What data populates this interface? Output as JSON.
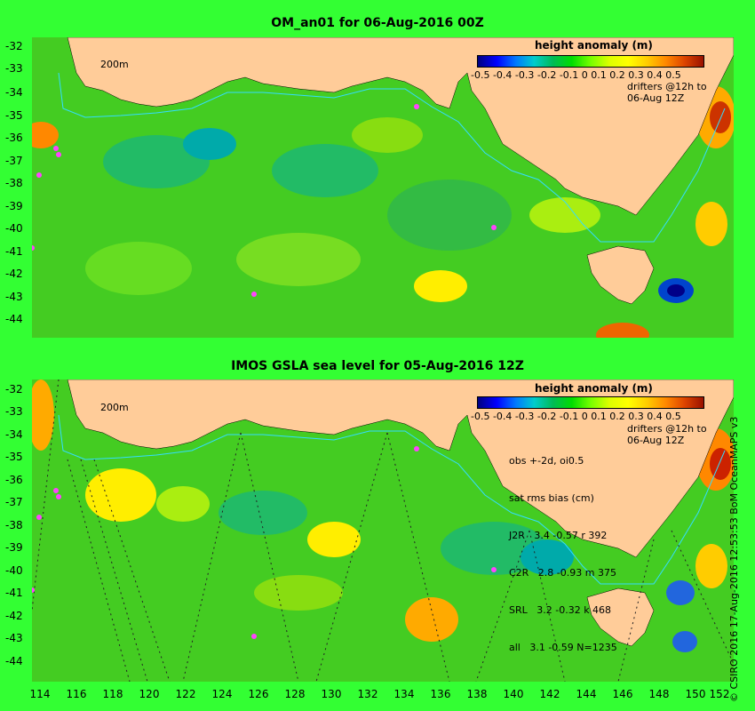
{
  "top_map": {
    "title": "OM_an01 for 06-Aug-2016 00Z",
    "legend_title": "height anomaly (m)",
    "colorbar_ticks": "-0.5 -0.4 -0.3 -0.2 -0.1   0   0.1  0.2  0.3  0.4  0.5",
    "drifters_label": "drifters @12h to",
    "drifters_time": "06-Aug 12Z",
    "contour_label": "200m"
  },
  "bottom_map": {
    "title": "IMOS GSLA sea level  for 05-Aug-2016 12Z",
    "legend_title": "height anomaly (m)",
    "colorbar_ticks": "-0.5 -0.4 -0.3 -0.2 -0.1   0   0.1  0.2  0.3  0.4  0.5",
    "drifters_label": "drifters @12h to",
    "drifters_time": "06-Aug 12Z",
    "contour_label": "200m",
    "stats": {
      "line1": "obs +-2d, oi0.5",
      "line2": "sat rms bias (cm)",
      "line3": "J2R   3.4 -0.57 r 392",
      "line4": "C2R   2.8 -0.93 m 375",
      "line5": "SRL   3.2 -0.32 k 468",
      "line6": "all   3.1 -0.59 N=1235"
    }
  },
  "y_ticks_top": [
    "-32",
    "-33",
    "-34",
    "-35",
    "-36",
    "-37",
    "-38",
    "-39",
    "-40",
    "-41",
    "-42",
    "-43",
    "-44"
  ],
  "y_ticks_bottom": [
    "-32",
    "-33",
    "-34",
    "-35",
    "-36",
    "-37",
    "-38",
    "-39",
    "-40",
    "-41",
    "-42",
    "-43",
    "-44"
  ],
  "x_ticks": [
    "114",
    "116",
    "118",
    "120",
    "122",
    "124",
    "126",
    "128",
    "130",
    "132",
    "134",
    "136",
    "138",
    "140",
    "142",
    "144",
    "146",
    "148",
    "150",
    "152"
  ],
  "credit": "© CSIRO 2016  17-Aug-2016 12:53:53 BoM OceanMAPS v3",
  "colors": {
    "background": "#33ff33",
    "land": "#ffcc99",
    "ocean": "#44cc22",
    "contour": "#33ddff"
  }
}
